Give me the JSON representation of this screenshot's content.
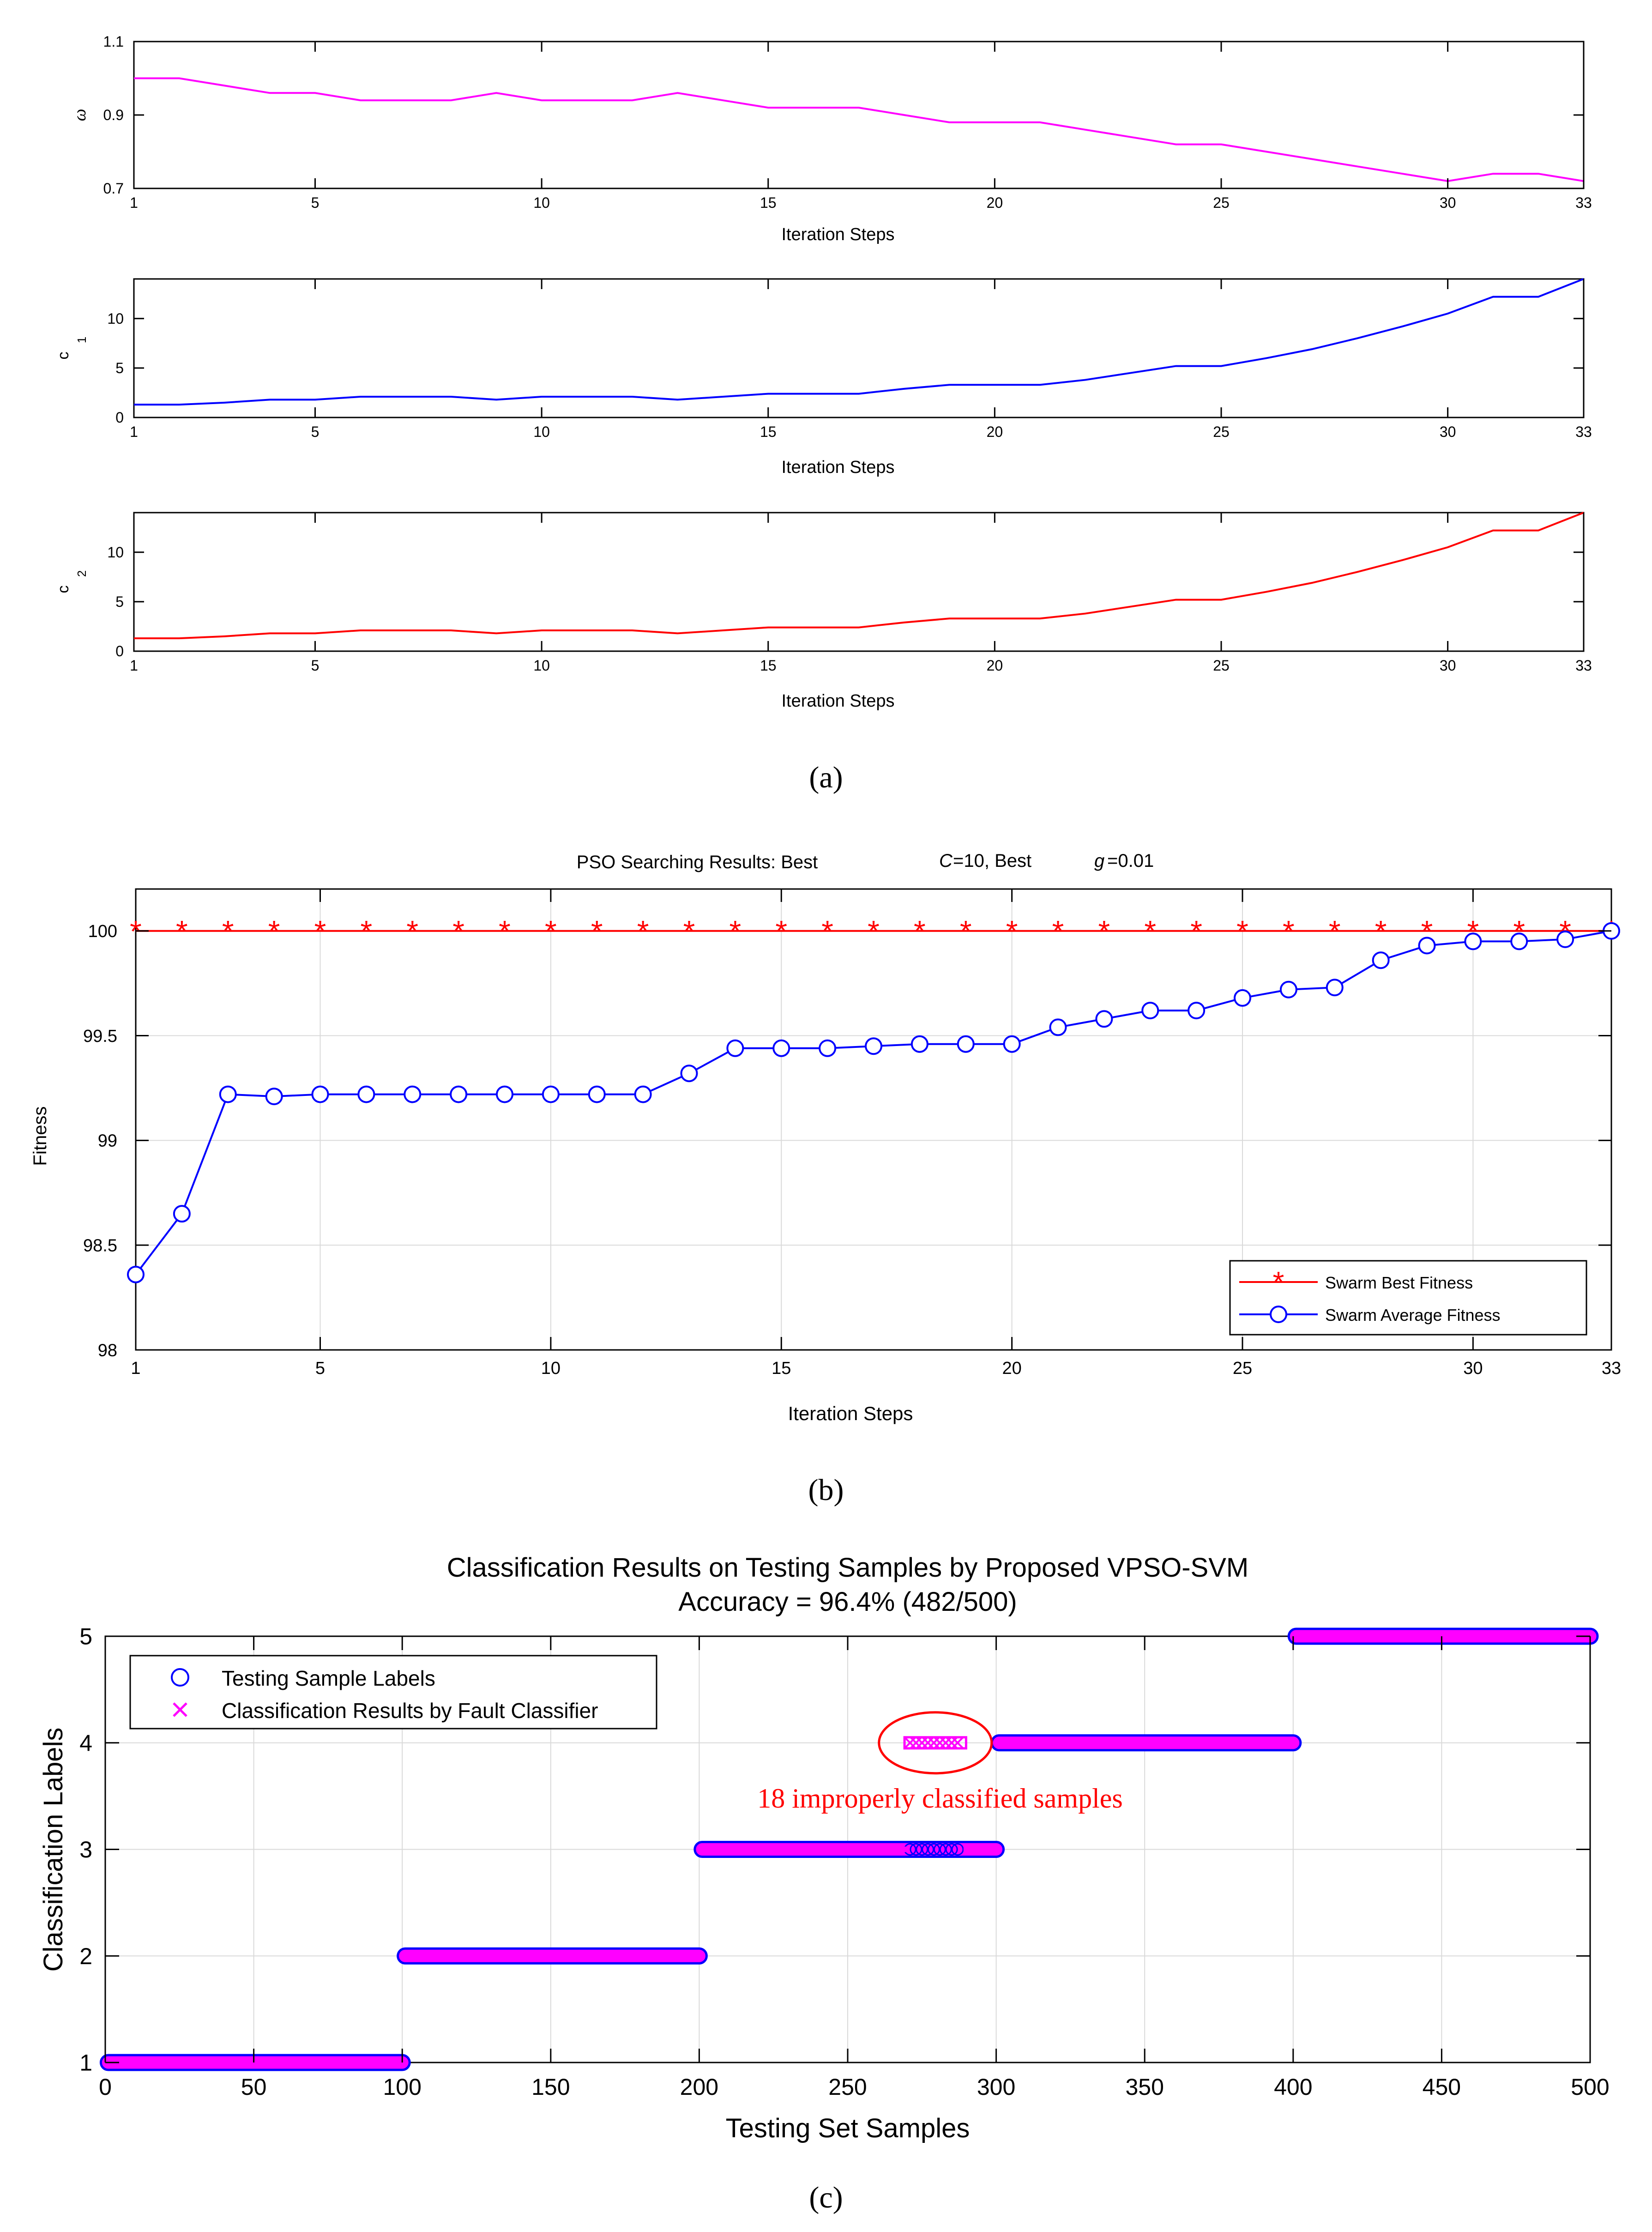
{
  "colors": {
    "omega": "#ff00ff",
    "c1": "#0000ff",
    "c2": "#ff0000",
    "best": "#ff0000",
    "average": "#0000ff",
    "labels": "#0000ff",
    "results": "#ff00ff",
    "annotation": "#ff0000",
    "grid": "#d9d9d9"
  },
  "panel_labels": {
    "a": "(a)",
    "b": "(b)",
    "c": "(c)"
  },
  "chart_data": [
    {
      "id": "omega",
      "type": "line",
      "panel": "a",
      "ylabel": "ω",
      "xlabel": "Iteration Steps",
      "xlim": [
        1,
        33
      ],
      "ylim": [
        0.7,
        1.1
      ],
      "xticks": [
        "1",
        "5",
        "10",
        "15",
        "20",
        "25",
        "30",
        "33"
      ],
      "xtick_values": [
        1,
        5,
        10,
        15,
        20,
        25,
        30,
        33
      ],
      "yticks": [
        "0.7",
        "0.9",
        "1.1"
      ],
      "ytick_values": [
        0.7,
        0.9,
        1.1
      ],
      "grid": false,
      "x": [
        1,
        2,
        3,
        4,
        5,
        6,
        7,
        8,
        9,
        10,
        11,
        12,
        13,
        14,
        15,
        16,
        17,
        18,
        19,
        20,
        21,
        22,
        23,
        24,
        25,
        26,
        27,
        28,
        29,
        30,
        31,
        32,
        33
      ],
      "values": [
        1.0,
        1.0,
        0.98,
        0.96,
        0.96,
        0.94,
        0.94,
        0.94,
        0.96,
        0.94,
        0.94,
        0.94,
        0.96,
        0.94,
        0.92,
        0.92,
        0.92,
        0.9,
        0.88,
        0.88,
        0.88,
        0.86,
        0.84,
        0.82,
        0.82,
        0.8,
        0.78,
        0.76,
        0.74,
        0.72,
        0.74,
        0.74,
        0.72
      ]
    },
    {
      "id": "c1",
      "type": "line",
      "panel": "a",
      "ylabel": "c",
      "ylabel_sub": "1",
      "xlabel": "Iteration Steps",
      "xlim": [
        1,
        33
      ],
      "ylim": [
        0,
        14
      ],
      "xticks": [
        "1",
        "5",
        "10",
        "15",
        "20",
        "25",
        "30",
        "33"
      ],
      "xtick_values": [
        1,
        5,
        10,
        15,
        20,
        25,
        30,
        33
      ],
      "yticks": [
        "0",
        "5",
        "10"
      ],
      "ytick_values": [
        0,
        5,
        10
      ],
      "grid": false,
      "x": [
        1,
        2,
        3,
        4,
        5,
        6,
        7,
        8,
        9,
        10,
        11,
        12,
        13,
        14,
        15,
        16,
        17,
        18,
        19,
        20,
        21,
        22,
        23,
        24,
        25,
        26,
        27,
        28,
        29,
        30,
        31,
        32,
        33
      ],
      "values": [
        1.3,
        1.3,
        1.5,
        1.8,
        1.8,
        2.1,
        2.1,
        2.1,
        1.8,
        2.1,
        2.1,
        2.1,
        1.8,
        2.1,
        2.4,
        2.4,
        2.4,
        2.9,
        3.3,
        3.3,
        3.3,
        3.8,
        4.5,
        5.2,
        5.2,
        6.0,
        6.9,
        8.0,
        9.2,
        10.5,
        12.2,
        12.2,
        14.0
      ]
    },
    {
      "id": "c2",
      "type": "line",
      "panel": "a",
      "ylabel": "c",
      "ylabel_sub": "2",
      "xlabel": "Iteration Steps",
      "xlim": [
        1,
        33
      ],
      "ylim": [
        0,
        14
      ],
      "xticks": [
        "1",
        "5",
        "10",
        "15",
        "20",
        "25",
        "30",
        "33"
      ],
      "xtick_values": [
        1,
        5,
        10,
        15,
        20,
        25,
        30,
        33
      ],
      "yticks": [
        "0",
        "5",
        "10"
      ],
      "ytick_values": [
        0,
        5,
        10
      ],
      "grid": false,
      "x": [
        1,
        2,
        3,
        4,
        5,
        6,
        7,
        8,
        9,
        10,
        11,
        12,
        13,
        14,
        15,
        16,
        17,
        18,
        19,
        20,
        21,
        22,
        23,
        24,
        25,
        26,
        27,
        28,
        29,
        30,
        31,
        32,
        33
      ],
      "values": [
        1.3,
        1.3,
        1.5,
        1.8,
        1.8,
        2.1,
        2.1,
        2.1,
        1.8,
        2.1,
        2.1,
        2.1,
        1.8,
        2.1,
        2.4,
        2.4,
        2.4,
        2.9,
        3.3,
        3.3,
        3.3,
        3.8,
        4.5,
        5.2,
        5.2,
        6.0,
        6.9,
        8.0,
        9.2,
        10.5,
        12.2,
        12.2,
        14.0
      ]
    },
    {
      "id": "fitness",
      "type": "line",
      "panel": "b",
      "title": "PSO Searching Results: Best",
      "title_c": "C",
      "title_c_value": "=10, Best",
      "title_g": "g",
      "title_g_value": "=0.01",
      "xlabel": "Iteration Steps",
      "ylabel": "Fitness",
      "xlim": [
        1,
        33
      ],
      "ylim": [
        98,
        100.2
      ],
      "xticks": [
        "1",
        "5",
        "10",
        "15",
        "20",
        "25",
        "30",
        "33"
      ],
      "xtick_values": [
        1,
        5,
        10,
        15,
        20,
        25,
        30,
        33
      ],
      "yticks": [
        "98",
        "98.5",
        "99",
        "99.5",
        "100"
      ],
      "ytick_values": [
        98,
        98.5,
        99,
        99.5,
        100
      ],
      "grid": true,
      "legend_position": "bottom-right",
      "x": [
        1,
        2,
        3,
        4,
        5,
        6,
        7,
        8,
        9,
        10,
        11,
        12,
        13,
        14,
        15,
        16,
        17,
        18,
        19,
        20,
        21,
        22,
        23,
        24,
        25,
        26,
        27,
        28,
        29,
        30,
        31,
        32,
        33
      ],
      "series": [
        {
          "name": "Swarm Best Fitness",
          "marker": "asterisk",
          "values": [
            100,
            100,
            100,
            100,
            100,
            100,
            100,
            100,
            100,
            100,
            100,
            100,
            100,
            100,
            100,
            100,
            100,
            100,
            100,
            100,
            100,
            100,
            100,
            100,
            100,
            100,
            100,
            100,
            100,
            100,
            100,
            100,
            100
          ]
        },
        {
          "name": "Swarm Average Fitness",
          "marker": "circle",
          "values": [
            98.36,
            98.65,
            99.22,
            99.21,
            99.22,
            99.22,
            99.22,
            99.22,
            99.22,
            99.22,
            99.22,
            99.22,
            99.32,
            99.44,
            99.44,
            99.44,
            99.45,
            99.46,
            99.46,
            99.46,
            99.54,
            99.58,
            99.62,
            99.62,
            99.68,
            99.72,
            99.73,
            99.86,
            99.93,
            99.95,
            99.95,
            99.96,
            100.0
          ]
        }
      ]
    },
    {
      "id": "classification",
      "type": "scatter",
      "panel": "c",
      "title": "Classification Results on Testing Samples by Proposed VPSO-SVM",
      "subtitle": "Accuracy = 96.4% (482/500)",
      "xlabel": "Testing Set Samples",
      "ylabel": "Classification Labels",
      "xlim": [
        0,
        500
      ],
      "ylim": [
        1,
        5
      ],
      "xticks": [
        "0",
        "50",
        "100",
        "150",
        "200",
        "250",
        "300",
        "350",
        "400",
        "450",
        "500"
      ],
      "xtick_values": [
        0,
        50,
        100,
        150,
        200,
        250,
        300,
        350,
        400,
        450,
        500
      ],
      "yticks": [
        "1",
        "2",
        "3",
        "4",
        "5"
      ],
      "ytick_values": [
        1,
        2,
        3,
        4,
        5
      ],
      "grid": true,
      "legend_position": "top-left",
      "series": [
        {
          "name": "Testing Sample Labels",
          "marker": "circle",
          "segments": [
            {
              "x_start": 1,
              "x_end": 100,
              "y": 1
            },
            {
              "x_start": 101,
              "x_end": 200,
              "y": 2
            },
            {
              "x_start": 201,
              "x_end": 300,
              "y": 3
            },
            {
              "x_start": 301,
              "x_end": 400,
              "y": 4
            },
            {
              "x_start": 401,
              "x_end": 500,
              "y": 5
            }
          ]
        },
        {
          "name": "Classification Results by Fault Classifier",
          "marker": "x",
          "segments": [
            {
              "x_start": 1,
              "x_end": 100,
              "y": 1
            },
            {
              "x_start": 101,
              "x_end": 200,
              "y": 2
            },
            {
              "x_start": 201,
              "x_end": 270,
              "y": 3
            },
            {
              "x_start": 271,
              "x_end": 288,
              "y": 4
            },
            {
              "x_start": 289,
              "x_end": 300,
              "y": 3
            },
            {
              "x_start": 301,
              "x_end": 400,
              "y": 4
            },
            {
              "x_start": 401,
              "x_end": 500,
              "y": 5
            }
          ]
        }
      ],
      "annotation": {
        "text": "18 improperly classified samples",
        "x_range": [
          271,
          288
        ],
        "y": 4
      }
    }
  ]
}
